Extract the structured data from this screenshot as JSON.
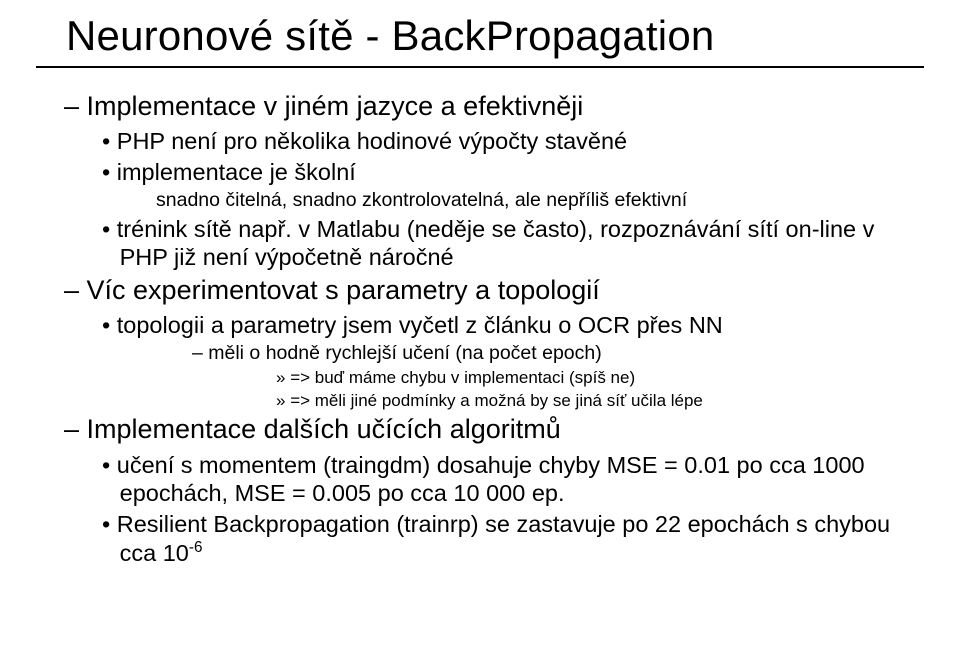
{
  "title": "Neuronové sítě - BackPropagation",
  "items": [
    {
      "level": 1,
      "text": "Implementace v jiném jazyce a efektivněji"
    },
    {
      "level": 2,
      "text": "PHP není pro několika hodinové výpočty stavěné"
    },
    {
      "level": 2,
      "text": "implementace je školní"
    },
    {
      "level": 3,
      "text": "snadno čitelná, snadno zkontrolovatelná, ale nepříliš efektivní"
    },
    {
      "level": 2,
      "text": "trénink sítě např. v Matlabu (neděje se často), rozpoznávání sítí on-line v PHP již není výpočetně náročné"
    },
    {
      "level": 1,
      "text": "Víc experimentovat s parametry a topologií"
    },
    {
      "level": 2,
      "text": "topologii a parametry jsem vyčetl z článku o OCR přes NN"
    },
    {
      "level": 4,
      "text": "měli o hodně rychlejší učení (na počet epoch)"
    },
    {
      "level": 5,
      "text": "=> buď máme chybu v implementaci (spíš ne)"
    },
    {
      "level": 5,
      "text": "=> měli jiné podmínky a možná by se jiná síť učila lépe"
    },
    {
      "level": 1,
      "text": "Implementace dalších učících algoritmů"
    },
    {
      "level": 2,
      "text": "učení s momentem (traingdm) dosahuje chyby MSE = 0.01 po cca 1000 epochách, MSE = 0.005 po cca 10 000 ep."
    },
    {
      "level": 2,
      "html": "Resilient Backpropagation (trainrp) se zastavuje po 22 epochách s chybou cca 10<sup>-6</sup>"
    }
  ]
}
